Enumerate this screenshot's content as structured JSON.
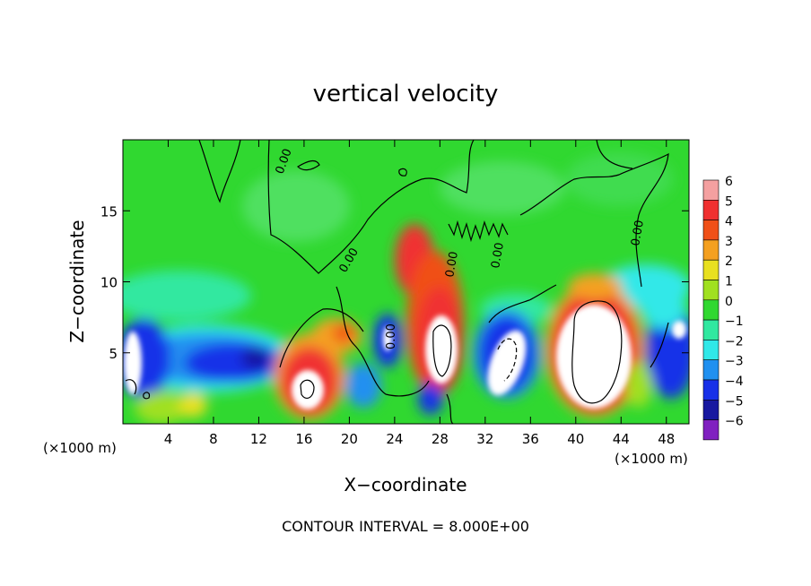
{
  "chart_data": {
    "type": "heatmap",
    "title": "vertical velocity",
    "xlabel": "X−coordinate",
    "ylabel": "Z−coordinate",
    "x_unit_left": "(×1000 m)",
    "x_unit_right": "(×1000 m)",
    "footer": "CONTOUR INTERVAL = 8.000E+00",
    "xlim": [
      0,
      50
    ],
    "ylim": [
      0,
      20
    ],
    "x_ticks": [
      "4",
      "8",
      "12",
      "16",
      "20",
      "24",
      "28",
      "32",
      "36",
      "40",
      "44",
      "48"
    ],
    "y_ticks": [
      "5",
      "10",
      "15"
    ],
    "contour_labels": [
      "0.00",
      "0.00",
      "0.00",
      "0.00",
      "0.00",
      "0.00"
    ],
    "colorbar": {
      "levels": [
        "6",
        "5",
        "4",
        "3",
        "2",
        "1",
        "0",
        "−1",
        "−2",
        "−3",
        "−4",
        "−5",
        "−6"
      ],
      "colors": [
        "#f4a0a0",
        "#f03030",
        "#f05018",
        "#f4a020",
        "#e8e020",
        "#a0e020",
        "#30d830",
        "#30e8a0",
        "#30e8e8",
        "#2090f0",
        "#1830e8",
        "#1818a0",
        "#8020c0"
      ]
    },
    "features": [
      {
        "x": 2,
        "z": 3,
        "w": -7
      },
      {
        "x": 10,
        "z": 4,
        "w": -5
      },
      {
        "x": 16.5,
        "z": 3,
        "w": 7
      },
      {
        "x": 19.5,
        "z": 6,
        "w": 4
      },
      {
        "x": 23.5,
        "z": 5,
        "w": -5
      },
      {
        "x": 26,
        "z": 11,
        "w": 5
      },
      {
        "x": 28,
        "z": 6,
        "w": 8
      },
      {
        "x": 34,
        "z": 5,
        "w": -7
      },
      {
        "x": 42,
        "z": 5,
        "w": 9
      },
      {
        "x": 49,
        "z": 6,
        "w": -6
      }
    ]
  }
}
